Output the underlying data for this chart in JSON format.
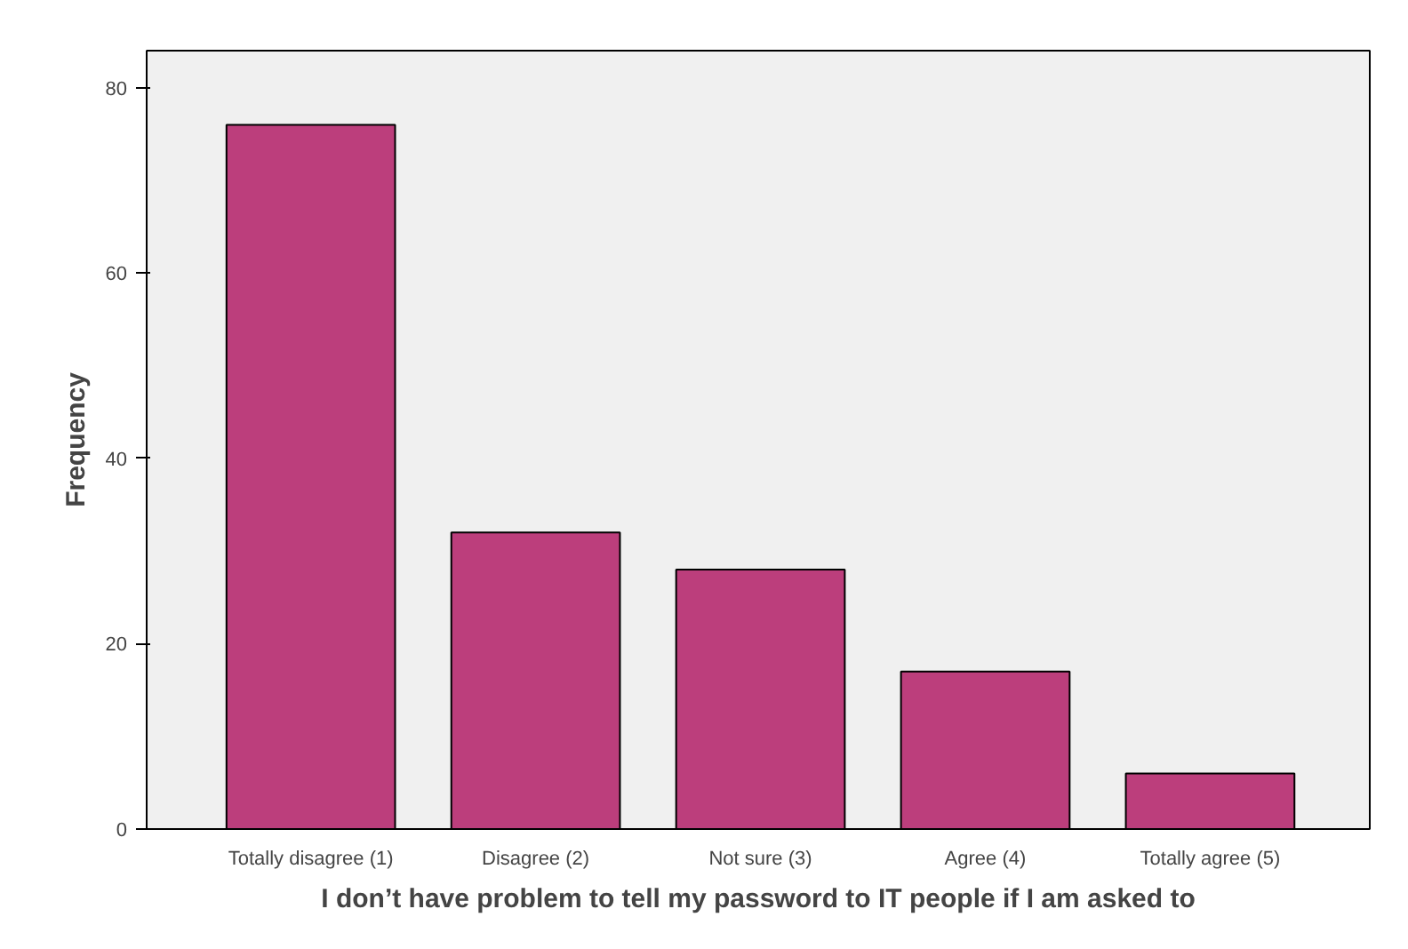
{
  "chart_data": {
    "type": "bar",
    "categories": [
      "Totally disagree (1)",
      "Disagree (2)",
      "Not sure (3)",
      "Agree (4)",
      "Totally agree (5)"
    ],
    "values": [
      76,
      32,
      28,
      17,
      6
    ],
    "color": "#bc3e7c",
    "xlabel": "I don’t have problem to tell my password to IT people if I am asked to",
    "ylabel": "Frequency",
    "ylim": [
      0,
      84
    ],
    "yticks": [
      0,
      20,
      40,
      60,
      80
    ]
  }
}
